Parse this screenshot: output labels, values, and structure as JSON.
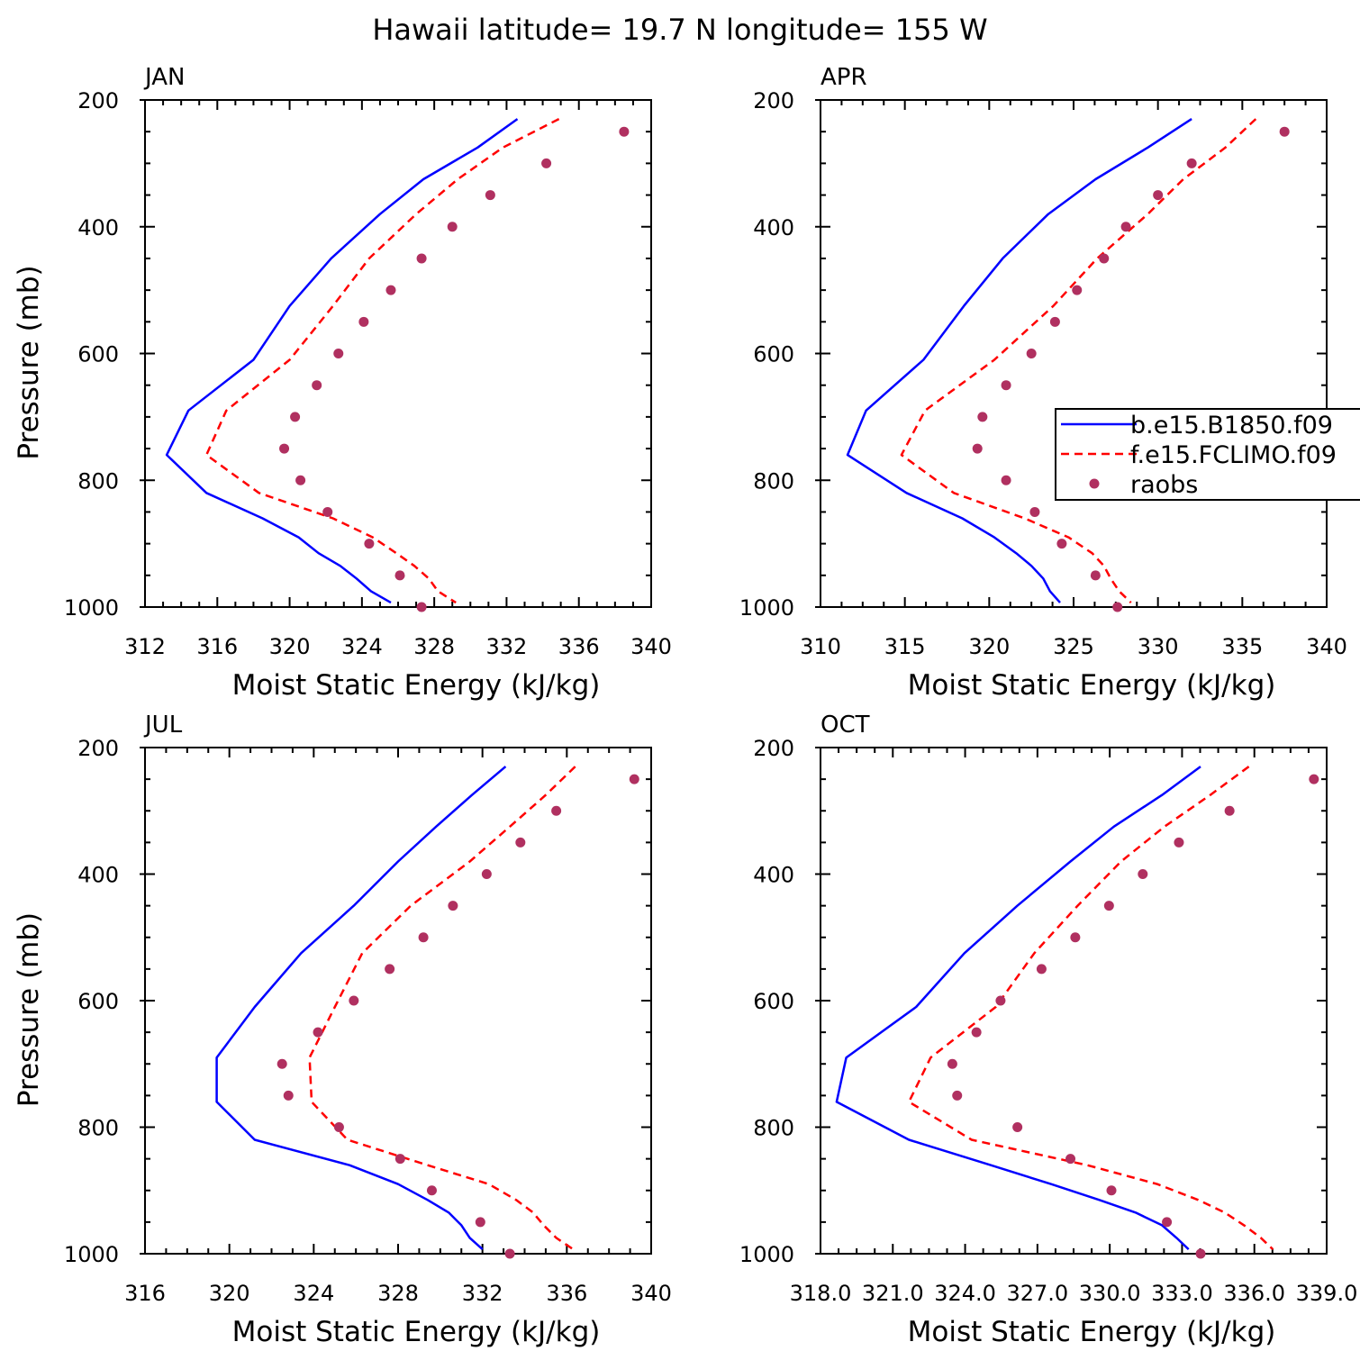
{
  "title": "Hawaii  latitude= 19.7 N longitude= 155 W",
  "legend": {
    "entries": [
      "b.e15.B1850.f09",
      "f.e15.FCLIMO.f09",
      "raobs"
    ]
  },
  "colors": {
    "model_b": "#0000ff",
    "model_f": "#ff0000",
    "raobs": "#b03060"
  },
  "chart_data": [
    {
      "type": "line",
      "month": "JAN",
      "xlabel": "Moist Static Energy (kJ/kg)",
      "ylabel": "Pressure (mb)",
      "xlim": [
        312,
        340
      ],
      "ylim": [
        1000,
        200
      ],
      "xticks": [
        312,
        316,
        320,
        324,
        328,
        332,
        336,
        340
      ],
      "xtick_labels": [
        "312",
        "316",
        "320",
        "324",
        "328",
        "332",
        "336",
        "340"
      ],
      "yticks": [
        200,
        400,
        600,
        800,
        1000
      ],
      "ytick_labels": [
        "200",
        "400",
        "600",
        "800",
        "1000"
      ],
      "series": [
        {
          "name": "b.e15.B1850.f09",
          "style": "solid",
          "p": [
            230,
            275,
            325,
            380,
            450,
            525,
            610,
            690,
            760,
            820,
            860,
            890,
            915,
            935,
            955,
            975,
            993
          ],
          "x": [
            332.6,
            330.4,
            327.4,
            325.0,
            322.3,
            320.0,
            318.0,
            314.4,
            313.2,
            315.4,
            318.5,
            320.5,
            321.6,
            322.8,
            323.7,
            324.5,
            325.6
          ]
        },
        {
          "name": "f.e15.FCLIMO.f09",
          "style": "dashed",
          "p": [
            230,
            275,
            325,
            380,
            450,
            525,
            610,
            690,
            760,
            820,
            860,
            890,
            915,
            935,
            955,
            975,
            993
          ],
          "x": [
            334.9,
            331.8,
            329.3,
            327.0,
            324.4,
            322.4,
            320.0,
            316.5,
            315.4,
            318.3,
            322.4,
            324.6,
            325.9,
            326.9,
            327.7,
            328.2,
            329.2
          ]
        },
        {
          "name": "raobs",
          "style": "markers",
          "p": [
            250,
            300,
            350,
            400,
            450,
            500,
            550,
            600,
            650,
            700,
            750,
            800,
            850,
            900,
            950,
            1000
          ],
          "x": [
            338.5,
            334.2,
            331.1,
            329.0,
            327.3,
            325.6,
            324.1,
            322.7,
            321.5,
            320.3,
            319.7,
            320.6,
            322.1,
            324.4,
            326.1,
            327.3
          ]
        }
      ]
    },
    {
      "type": "line",
      "month": "APR",
      "xlabel": "Moist Static Energy (kJ/kg)",
      "ylabel": "",
      "xlim": [
        310,
        340
      ],
      "ylim": [
        1000,
        200
      ],
      "xticks": [
        310,
        315,
        320,
        325,
        330,
        335,
        340
      ],
      "xtick_labels": [
        "310",
        "315",
        "320",
        "325",
        "330",
        "335",
        "340"
      ],
      "yticks": [
        200,
        400,
        600,
        800,
        1000
      ],
      "ytick_labels": [
        "200",
        "400",
        "600",
        "800",
        "1000"
      ],
      "series": [
        {
          "name": "b.e15.B1850.f09",
          "style": "solid",
          "p": [
            230,
            275,
            325,
            380,
            450,
            525,
            610,
            690,
            760,
            820,
            860,
            890,
            915,
            935,
            955,
            975,
            993
          ],
          "x": [
            332.0,
            329.4,
            326.3,
            323.5,
            320.8,
            318.5,
            316.1,
            312.7,
            311.6,
            315.1,
            318.4,
            320.3,
            321.6,
            322.5,
            323.2,
            323.6,
            324.2
          ]
        },
        {
          "name": "f.e15.FCLIMO.f09",
          "style": "dashed",
          "p": [
            230,
            275,
            325,
            380,
            450,
            525,
            610,
            690,
            760,
            820,
            860,
            890,
            915,
            935,
            955,
            975,
            993
          ],
          "x": [
            335.8,
            334.0,
            331.5,
            329.4,
            326.4,
            323.8,
            320.3,
            316.2,
            314.8,
            317.9,
            322.1,
            324.7,
            326.1,
            326.8,
            327.2,
            327.7,
            328.4
          ]
        },
        {
          "name": "raobs",
          "style": "markers",
          "p": [
            250,
            300,
            350,
            400,
            450,
            500,
            550,
            600,
            650,
            700,
            750,
            800,
            850,
            900,
            950,
            1000
          ],
          "x": [
            337.5,
            332.0,
            330.0,
            328.1,
            326.8,
            325.2,
            323.9,
            322.5,
            321.0,
            319.6,
            319.3,
            321.0,
            322.7,
            324.3,
            326.3,
            327.6
          ]
        }
      ]
    },
    {
      "type": "line",
      "month": "JUL",
      "xlabel": "Moist Static Energy (kJ/kg)",
      "ylabel": "Pressure (mb)",
      "xlim": [
        316,
        340
      ],
      "ylim": [
        1000,
        200
      ],
      "xticks": [
        316,
        320,
        324,
        328,
        332,
        336,
        340
      ],
      "xtick_labels": [
        "316",
        "320",
        "324",
        "328",
        "332",
        "336",
        "340"
      ],
      "yticks": [
        200,
        400,
        600,
        800,
        1000
      ],
      "ytick_labels": [
        "200",
        "400",
        "600",
        "800",
        "1000"
      ],
      "series": [
        {
          "name": "b.e15.B1850.f09",
          "style": "solid",
          "p": [
            230,
            275,
            325,
            380,
            450,
            525,
            610,
            690,
            760,
            820,
            860,
            890,
            915,
            935,
            955,
            975,
            993
          ],
          "x": [
            333.1,
            331.5,
            329.8,
            328.0,
            325.9,
            323.4,
            321.2,
            319.4,
            319.4,
            321.2,
            325.7,
            328.0,
            329.4,
            330.4,
            331.0,
            331.4,
            332.0
          ]
        },
        {
          "name": "f.e15.FCLIMO.f09",
          "style": "dashed",
          "p": [
            230,
            275,
            325,
            380,
            450,
            525,
            610,
            690,
            760,
            820,
            860,
            890,
            915,
            935,
            955,
            975,
            993
          ],
          "x": [
            336.4,
            335.0,
            333.3,
            331.4,
            328.6,
            326.3,
            325.0,
            323.8,
            323.9,
            325.6,
            329.4,
            332.3,
            333.6,
            334.4,
            334.9,
            335.5,
            336.3
          ]
        },
        {
          "name": "raobs",
          "style": "markers",
          "p": [
            250,
            300,
            350,
            400,
            450,
            500,
            550,
            600,
            650,
            700,
            750,
            800,
            850,
            900,
            950,
            1000
          ],
          "x": [
            339.2,
            335.5,
            333.8,
            332.2,
            330.6,
            329.2,
            327.6,
            325.9,
            324.2,
            322.5,
            322.8,
            325.2,
            328.1,
            329.6,
            331.9,
            333.3
          ]
        }
      ]
    },
    {
      "type": "line",
      "month": "OCT",
      "xlabel": "Moist Static Energy (kJ/kg)",
      "ylabel": "",
      "xlim": [
        318.03,
        339.03
      ],
      "ylim": [
        1000,
        200
      ],
      "xticks": [
        318.03,
        321.03,
        324.03,
        327.03,
        330.03,
        333.03,
        336.03,
        339.03
      ],
      "xtick_labels": [
        "318.0",
        "321.0",
        "324.0",
        "327.0",
        "330.0",
        "333.0",
        "336.0",
        "339.0"
      ],
      "yticks": [
        200,
        400,
        600,
        800,
        1000
      ],
      "ytick_labels": [
        "200",
        "400",
        "600",
        "800",
        "1000"
      ],
      "series": [
        {
          "name": "b.e15.B1850.f09",
          "style": "solid",
          "p": [
            230,
            275,
            325,
            380,
            450,
            525,
            610,
            690,
            760,
            820,
            860,
            890,
            915,
            935,
            955,
            975,
            993
          ],
          "x": [
            333.8,
            332.2,
            330.2,
            328.4,
            326.2,
            324.0,
            322.0,
            319.1,
            318.7,
            321.7,
            325.1,
            327.6,
            329.6,
            331.1,
            332.2,
            332.8,
            333.3
          ]
        },
        {
          "name": "f.e15.FCLIMO.f09",
          "style": "dashed",
          "p": [
            230,
            275,
            325,
            380,
            450,
            525,
            610,
            690,
            760,
            820,
            860,
            890,
            915,
            935,
            955,
            975,
            993
          ],
          "x": [
            335.8,
            334.2,
            332.3,
            330.5,
            328.7,
            326.9,
            325.3,
            322.6,
            321.7,
            324.3,
            329.1,
            332.0,
            333.7,
            334.8,
            335.6,
            336.3,
            336.8
          ]
        },
        {
          "name": "raobs",
          "style": "markers",
          "p": [
            250,
            300,
            350,
            400,
            450,
            500,
            550,
            600,
            650,
            700,
            750,
            800,
            850,
            900,
            950,
            1000
          ],
          "x": [
            338.5,
            335.0,
            332.9,
            331.4,
            330.0,
            328.6,
            327.2,
            325.5,
            324.5,
            323.5,
            323.7,
            326.2,
            328.4,
            330.1,
            332.4,
            333.8
          ]
        }
      ]
    }
  ]
}
